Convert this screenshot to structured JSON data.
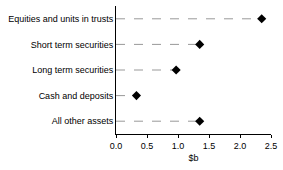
{
  "chart_data": {
    "type": "dot",
    "orientation": "horizontal",
    "categories": [
      "Equities and units in trusts",
      "Short term securities",
      "Long term securities",
      "Cash and deposits",
      "All other assets"
    ],
    "values": [
      2.35,
      1.35,
      0.97,
      0.33,
      1.35
    ],
    "color": "#000000",
    "marker": "diamond",
    "line_style": "dashed",
    "x_label": "$b",
    "xlim": [
      0,
      2.5
    ],
    "xticks": [
      {
        "value": 0,
        "label": "0.0"
      },
      0.5,
      {
        "value": 1,
        "label": "1.0"
      },
      1.5,
      {
        "value": 2,
        "label": "2.0"
      },
      2.5
    ],
    "grid": false
  }
}
